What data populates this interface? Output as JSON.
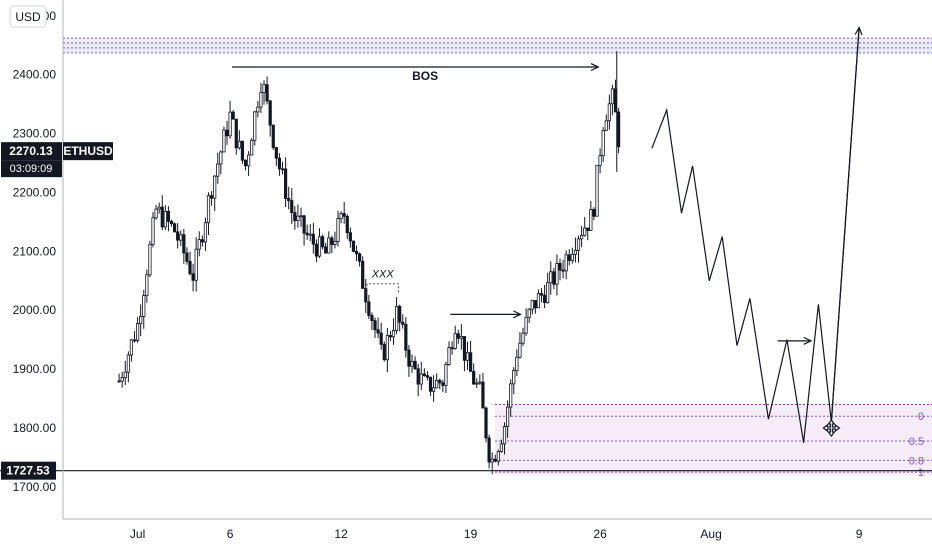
{
  "chart_data": {
    "type": "candlestick",
    "symbol": "ETHUSD",
    "currency_button": "USD",
    "y_ticks": [
      {
        "value": 1700,
        "label": "1700.00"
      },
      {
        "value": 1800,
        "label": "1800.00"
      },
      {
        "value": 1900,
        "label": "1900.00"
      },
      {
        "value": 2000,
        "label": "2000.00"
      },
      {
        "value": 2100,
        "label": "2100.00"
      },
      {
        "value": 2200,
        "label": "2200.00"
      },
      {
        "value": 2300,
        "label": "2300.00"
      },
      {
        "value": 2400,
        "label": "2400.00"
      },
      {
        "value": 2500,
        "label": "2500.00"
      }
    ],
    "x_ticks": [
      {
        "day": 1,
        "label": "Jul"
      },
      {
        "day": 6,
        "label": "6"
      },
      {
        "day": 12,
        "label": "12"
      },
      {
        "day": 19,
        "label": "19"
      },
      {
        "day": 26,
        "label": "26"
      },
      {
        "day": 32,
        "label": "Aug"
      },
      {
        "day": 40,
        "label": "9"
      }
    ],
    "current_price": {
      "value": 2270.13,
      "label": "2270.13",
      "countdown": "03:09:09"
    },
    "level_line": {
      "value": 1727.53,
      "label": "1727.53"
    },
    "resistance_zone": {
      "from": 2437,
      "to": 2462
    },
    "bos": {
      "label": "BOS",
      "value": 2413,
      "from_day": 6.1,
      "to_day": 25.9
    },
    "xxx_label": "XXX",
    "fib_zone": {
      "from": 1720,
      "to": 1840,
      "levels": [
        {
          "value": 1820,
          "label": "0"
        },
        {
          "value": 1778,
          "label": "0.5"
        },
        {
          "value": 1745,
          "label": "0.8"
        },
        {
          "value": 1725,
          "label": "1"
        }
      ]
    },
    "price_path": [
      {
        "day": 0.0,
        "price": 1880
      },
      {
        "day": 1.0,
        "price": 1975
      },
      {
        "day": 2.0,
        "price": 2170
      },
      {
        "day": 3.0,
        "price": 2135
      },
      {
        "day": 4.0,
        "price": 2060
      },
      {
        "day": 5.0,
        "price": 2210
      },
      {
        "day": 6.0,
        "price": 2330
      },
      {
        "day": 6.8,
        "price": 2240
      },
      {
        "day": 7.7,
        "price": 2395
      },
      {
        "day": 8.6,
        "price": 2250
      },
      {
        "day": 9.4,
        "price": 2160
      },
      {
        "day": 10.3,
        "price": 2120
      },
      {
        "day": 11.2,
        "price": 2095
      },
      {
        "day": 12.2,
        "price": 2165
      },
      {
        "day": 12.8,
        "price": 2090
      },
      {
        "day": 13.5,
        "price": 2010
      },
      {
        "day": 14.2,
        "price": 1920
      },
      {
        "day": 15.0,
        "price": 1995
      },
      {
        "day": 15.8,
        "price": 1905
      },
      {
        "day": 16.6,
        "price": 1870
      },
      {
        "day": 17.5,
        "price": 1880
      },
      {
        "day": 18.2,
        "price": 1985
      },
      {
        "day": 18.9,
        "price": 1900
      },
      {
        "day": 19.5,
        "price": 1860
      },
      {
        "day": 20.1,
        "price": 1740
      },
      {
        "day": 20.8,
        "price": 1800
      },
      {
        "day": 21.5,
        "price": 1930
      },
      {
        "day": 22.3,
        "price": 2005
      },
      {
        "day": 23.2,
        "price": 2040
      },
      {
        "day": 24.0,
        "price": 2080
      },
      {
        "day": 24.8,
        "price": 2130
      },
      {
        "day": 25.6,
        "price": 2160
      },
      {
        "day": 26.2,
        "price": 2330
      },
      {
        "day": 26.7,
        "price": 2360
      },
      {
        "day": 27.1,
        "price": 2270
      }
    ],
    "projection_path": [
      {
        "day": 28.8,
        "price": 2275
      },
      {
        "day": 29.6,
        "price": 2340
      },
      {
        "day": 30.4,
        "price": 2165
      },
      {
        "day": 31.0,
        "price": 2245
      },
      {
        "day": 31.9,
        "price": 2050
      },
      {
        "day": 32.6,
        "price": 2125
      },
      {
        "day": 33.4,
        "price": 1940
      },
      {
        "day": 34.1,
        "price": 2020
      },
      {
        "day": 35.1,
        "price": 1815
      },
      {
        "day": 36.1,
        "price": 1950
      },
      {
        "day": 37.0,
        "price": 1775
      },
      {
        "day": 37.8,
        "price": 2010
      },
      {
        "day": 38.5,
        "price": 1810
      },
      {
        "day": 40.0,
        "price": 2480
      }
    ]
  }
}
